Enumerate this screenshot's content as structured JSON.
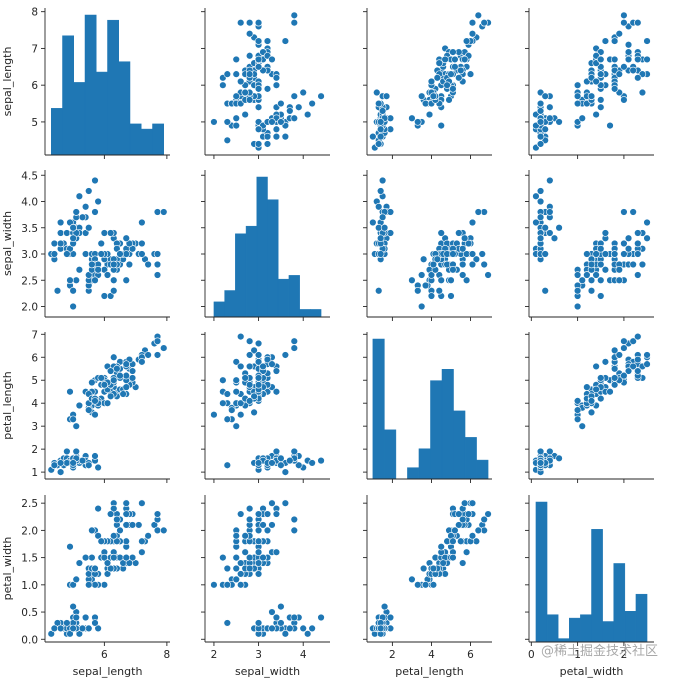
{
  "watermark": "@稀土掘金技术社区",
  "colors": {
    "marker": "#1f77b4",
    "marker_edge": "#ffffff",
    "axis": "#262626"
  },
  "chart_data": {
    "type": "pairplot",
    "variables": [
      "sepal_length",
      "sepal_width",
      "petal_length",
      "petal_width"
    ],
    "ranges": {
      "sepal_length": [
        4.1,
        8.1
      ],
      "sepal_width": [
        1.8,
        4.6
      ],
      "petal_length": [
        0.7,
        7.1
      ],
      "petal_width": [
        -0.05,
        2.65
      ]
    },
    "ticks": {
      "sepal_length": {
        "values": [
          5,
          6,
          7,
          8
        ],
        "labels": [
          "5",
          "6",
          "7",
          "8"
        ]
      },
      "sepal_width": {
        "values": [
          2.0,
          2.5,
          3.0,
          3.5,
          4.0,
          4.5
        ],
        "labels": [
          "2.0",
          "2.5",
          "3.0",
          "3.5",
          "4.0",
          "4.5"
        ]
      },
      "petal_length": {
        "values": [
          1,
          2,
          3,
          4,
          5,
          6,
          7
        ],
        "labels": [
          "1",
          "2",
          "3",
          "4",
          "5",
          "6",
          "7"
        ]
      },
      "petal_width": {
        "values": [
          0.0,
          0.5,
          1.0,
          1.5,
          2.0,
          2.5
        ],
        "labels": [
          "0.0",
          "0.5",
          "1.0",
          "1.5",
          "2.0",
          "2.5"
        ]
      }
    },
    "x_ticks": {
      "sepal_length": {
        "values": [
          6,
          8
        ],
        "labels": [
          "6",
          "8"
        ]
      },
      "sepal_width": {
        "values": [
          2,
          3,
          4
        ],
        "labels": [
          "2",
          "3",
          "4"
        ]
      },
      "petal_length": {
        "values": [
          2,
          4,
          6
        ],
        "labels": [
          "2",
          "4",
          "6"
        ]
      },
      "petal_width": {
        "values": [
          0,
          1,
          2
        ],
        "labels": [
          "0",
          "1",
          "2"
        ]
      }
    },
    "histograms": {
      "sepal_length": {
        "edges": [
          4.3,
          4.66,
          5.02,
          5.38,
          5.74,
          6.1,
          6.46,
          6.82,
          7.18,
          7.54,
          7.9
        ],
        "counts": [
          9,
          23,
          14,
          27,
          16,
          26,
          18,
          6,
          5,
          6
        ]
      },
      "sepal_width": {
        "edges": [
          2.0,
          2.24,
          2.48,
          2.72,
          2.96,
          3.2,
          3.44,
          3.68,
          3.92,
          4.16,
          4.4
        ],
        "counts": [
          4,
          7,
          22,
          24,
          37,
          31,
          10,
          11,
          2,
          2
        ]
      },
      "petal_length": {
        "edges": [
          1.0,
          1.59,
          2.18,
          2.77,
          3.36,
          3.95,
          4.54,
          5.13,
          5.72,
          6.31,
          6.9
        ],
        "counts": [
          37,
          13,
          0,
          3,
          8,
          26,
          29,
          18,
          11,
          5
        ]
      },
      "petal_width": {
        "edges": [
          0.1,
          0.34,
          0.58,
          0.82,
          1.06,
          1.3,
          1.54,
          1.78,
          2.02,
          2.26,
          2.5
        ],
        "counts": [
          41,
          8,
          1,
          7,
          8,
          33,
          6,
          23,
          9,
          14
        ]
      }
    },
    "records": [
      [
        5.1,
        3.5,
        1.4,
        0.2
      ],
      [
        4.9,
        3.0,
        1.4,
        0.2
      ],
      [
        4.7,
        3.2,
        1.3,
        0.2
      ],
      [
        4.6,
        3.1,
        1.5,
        0.2
      ],
      [
        5.0,
        3.6,
        1.4,
        0.2
      ],
      [
        5.4,
        3.9,
        1.7,
        0.4
      ],
      [
        4.6,
        3.4,
        1.4,
        0.3
      ],
      [
        5.0,
        3.4,
        1.5,
        0.2
      ],
      [
        4.4,
        2.9,
        1.4,
        0.2
      ],
      [
        4.9,
        3.1,
        1.5,
        0.1
      ],
      [
        5.4,
        3.7,
        1.5,
        0.2
      ],
      [
        4.8,
        3.4,
        1.6,
        0.2
      ],
      [
        4.8,
        3.0,
        1.4,
        0.1
      ],
      [
        4.3,
        3.0,
        1.1,
        0.1
      ],
      [
        5.8,
        4.0,
        1.2,
        0.2
      ],
      [
        5.7,
        4.4,
        1.5,
        0.4
      ],
      [
        5.4,
        3.9,
        1.3,
        0.4
      ],
      [
        5.1,
        3.5,
        1.4,
        0.3
      ],
      [
        5.7,
        3.8,
        1.7,
        0.3
      ],
      [
        5.1,
        3.8,
        1.5,
        0.3
      ],
      [
        5.4,
        3.4,
        1.7,
        0.2
      ],
      [
        5.1,
        3.7,
        1.5,
        0.4
      ],
      [
        4.6,
        3.6,
        1.0,
        0.2
      ],
      [
        5.1,
        3.3,
        1.7,
        0.5
      ],
      [
        4.8,
        3.4,
        1.9,
        0.2
      ],
      [
        5.0,
        3.0,
        1.6,
        0.2
      ],
      [
        5.0,
        3.4,
        1.6,
        0.4
      ],
      [
        5.2,
        3.5,
        1.5,
        0.2
      ],
      [
        5.2,
        3.4,
        1.4,
        0.2
      ],
      [
        4.7,
        3.2,
        1.6,
        0.2
      ],
      [
        4.8,
        3.1,
        1.6,
        0.2
      ],
      [
        5.4,
        3.4,
        1.5,
        0.4
      ],
      [
        5.2,
        4.1,
        1.5,
        0.1
      ],
      [
        5.5,
        4.2,
        1.4,
        0.2
      ],
      [
        4.9,
        3.1,
        1.5,
        0.2
      ],
      [
        5.0,
        3.2,
        1.2,
        0.2
      ],
      [
        5.5,
        3.5,
        1.3,
        0.2
      ],
      [
        4.9,
        3.6,
        1.4,
        0.1
      ],
      [
        4.4,
        3.0,
        1.3,
        0.2
      ],
      [
        5.1,
        3.4,
        1.5,
        0.2
      ],
      [
        5.0,
        3.5,
        1.3,
        0.3
      ],
      [
        4.5,
        2.3,
        1.3,
        0.3
      ],
      [
        4.4,
        3.2,
        1.3,
        0.2
      ],
      [
        5.0,
        3.5,
        1.6,
        0.6
      ],
      [
        5.1,
        3.8,
        1.9,
        0.4
      ],
      [
        4.8,
        3.0,
        1.4,
        0.3
      ],
      [
        5.1,
        3.8,
        1.6,
        0.2
      ],
      [
        4.6,
        3.2,
        1.4,
        0.2
      ],
      [
        5.3,
        3.7,
        1.5,
        0.2
      ],
      [
        5.0,
        3.3,
        1.4,
        0.2
      ],
      [
        7.0,
        3.2,
        4.7,
        1.4
      ],
      [
        6.4,
        3.2,
        4.5,
        1.5
      ],
      [
        6.9,
        3.1,
        4.9,
        1.5
      ],
      [
        5.5,
        2.3,
        4.0,
        1.3
      ],
      [
        6.5,
        2.8,
        4.6,
        1.5
      ],
      [
        5.7,
        2.8,
        4.5,
        1.3
      ],
      [
        6.3,
        3.3,
        4.7,
        1.6
      ],
      [
        4.9,
        2.4,
        3.3,
        1.0
      ],
      [
        6.6,
        2.9,
        4.6,
        1.3
      ],
      [
        5.2,
        2.7,
        3.9,
        1.4
      ],
      [
        5.0,
        2.0,
        3.5,
        1.0
      ],
      [
        5.9,
        3.0,
        4.2,
        1.5
      ],
      [
        6.0,
        2.2,
        4.0,
        1.0
      ],
      [
        6.1,
        2.9,
        4.7,
        1.4
      ],
      [
        5.6,
        2.9,
        3.6,
        1.3
      ],
      [
        6.7,
        3.1,
        4.4,
        1.4
      ],
      [
        5.6,
        3.0,
        4.5,
        1.5
      ],
      [
        5.8,
        2.7,
        4.1,
        1.0
      ],
      [
        6.2,
        2.2,
        4.5,
        1.5
      ],
      [
        5.6,
        2.5,
        3.9,
        1.1
      ],
      [
        5.9,
        3.2,
        4.8,
        1.8
      ],
      [
        6.1,
        2.8,
        4.0,
        1.3
      ],
      [
        6.3,
        2.5,
        4.9,
        1.5
      ],
      [
        6.1,
        2.8,
        4.7,
        1.2
      ],
      [
        6.4,
        2.9,
        4.3,
        1.3
      ],
      [
        6.6,
        3.0,
        4.4,
        1.4
      ],
      [
        6.8,
        2.8,
        4.8,
        1.4
      ],
      [
        6.7,
        3.0,
        5.0,
        1.7
      ],
      [
        6.0,
        2.9,
        4.5,
        1.5
      ],
      [
        5.7,
        2.6,
        3.5,
        1.0
      ],
      [
        5.5,
        2.4,
        3.8,
        1.1
      ],
      [
        5.5,
        2.4,
        3.7,
        1.0
      ],
      [
        5.8,
        2.7,
        3.9,
        1.2
      ],
      [
        6.0,
        2.7,
        5.1,
        1.6
      ],
      [
        5.4,
        3.0,
        4.5,
        1.5
      ],
      [
        6.0,
        3.4,
        4.5,
        1.6
      ],
      [
        6.7,
        3.1,
        4.7,
        1.5
      ],
      [
        6.3,
        2.3,
        4.4,
        1.3
      ],
      [
        5.6,
        3.0,
        4.1,
        1.3
      ],
      [
        5.5,
        2.5,
        4.0,
        1.3
      ],
      [
        5.5,
        2.6,
        4.4,
        1.2
      ],
      [
        6.1,
        3.0,
        4.6,
        1.4
      ],
      [
        5.8,
        2.6,
        4.0,
        1.2
      ],
      [
        5.0,
        2.3,
        3.3,
        1.0
      ],
      [
        5.6,
        2.7,
        4.2,
        1.3
      ],
      [
        5.7,
        3.0,
        4.2,
        1.2
      ],
      [
        5.7,
        2.9,
        4.2,
        1.3
      ],
      [
        6.2,
        2.9,
        4.3,
        1.3
      ],
      [
        5.1,
        2.5,
        3.0,
        1.1
      ],
      [
        5.7,
        2.8,
        4.1,
        1.3
      ],
      [
        6.3,
        3.3,
        6.0,
        2.5
      ],
      [
        5.8,
        2.7,
        5.1,
        1.9
      ],
      [
        7.1,
        3.0,
        5.9,
        2.1
      ],
      [
        6.3,
        2.9,
        5.6,
        1.8
      ],
      [
        6.5,
        3.0,
        5.8,
        2.2
      ],
      [
        7.6,
        3.0,
        6.6,
        2.1
      ],
      [
        4.9,
        2.5,
        4.5,
        1.7
      ],
      [
        7.3,
        2.9,
        6.3,
        1.8
      ],
      [
        6.7,
        2.5,
        5.8,
        1.8
      ],
      [
        7.2,
        3.6,
        6.1,
        2.5
      ],
      [
        6.5,
        3.2,
        5.1,
        2.0
      ],
      [
        6.4,
        2.7,
        5.3,
        1.9
      ],
      [
        6.8,
        3.0,
        5.5,
        2.1
      ],
      [
        5.7,
        2.5,
        5.0,
        2.0
      ],
      [
        5.8,
        2.8,
        5.1,
        2.4
      ],
      [
        6.4,
        3.2,
        5.3,
        2.3
      ],
      [
        6.5,
        3.0,
        5.5,
        1.8
      ],
      [
        7.7,
        3.8,
        6.7,
        2.2
      ],
      [
        7.7,
        2.6,
        6.9,
        2.3
      ],
      [
        6.0,
        2.2,
        5.0,
        1.5
      ],
      [
        6.9,
        3.2,
        5.7,
        2.3
      ],
      [
        5.6,
        2.8,
        4.9,
        2.0
      ],
      [
        7.7,
        2.8,
        6.7,
        2.0
      ],
      [
        6.3,
        2.7,
        4.9,
        1.8
      ],
      [
        6.7,
        3.3,
        5.7,
        2.1
      ],
      [
        7.2,
        3.2,
        6.0,
        1.8
      ],
      [
        6.2,
        2.8,
        4.8,
        1.8
      ],
      [
        6.1,
        3.0,
        4.9,
        1.8
      ],
      [
        6.4,
        2.8,
        5.6,
        2.1
      ],
      [
        7.2,
        3.0,
        5.8,
        1.6
      ],
      [
        7.4,
        2.8,
        6.1,
        1.9
      ],
      [
        7.9,
        3.8,
        6.4,
        2.0
      ],
      [
        6.4,
        2.8,
        5.6,
        2.2
      ],
      [
        6.3,
        2.8,
        5.1,
        1.5
      ],
      [
        6.1,
        2.6,
        5.6,
        1.4
      ],
      [
        7.7,
        3.0,
        6.1,
        2.3
      ],
      [
        6.3,
        3.4,
        5.6,
        2.4
      ],
      [
        6.4,
        3.1,
        5.5,
        1.8
      ],
      [
        6.0,
        3.0,
        4.8,
        1.8
      ],
      [
        6.9,
        3.1,
        5.4,
        2.1
      ],
      [
        6.7,
        3.1,
        5.6,
        2.4
      ],
      [
        6.9,
        3.1,
        5.1,
        2.3
      ],
      [
        5.8,
        2.7,
        5.1,
        1.9
      ],
      [
        6.8,
        3.2,
        5.9,
        2.3
      ],
      [
        6.7,
        3.3,
        5.7,
        2.5
      ],
      [
        6.7,
        3.0,
        5.2,
        2.3
      ],
      [
        6.3,
        2.5,
        5.0,
        1.9
      ],
      [
        6.5,
        3.0,
        5.2,
        2.0
      ],
      [
        6.2,
        3.4,
        5.4,
        2.3
      ],
      [
        5.9,
        3.0,
        5.1,
        1.8
      ]
    ]
  }
}
